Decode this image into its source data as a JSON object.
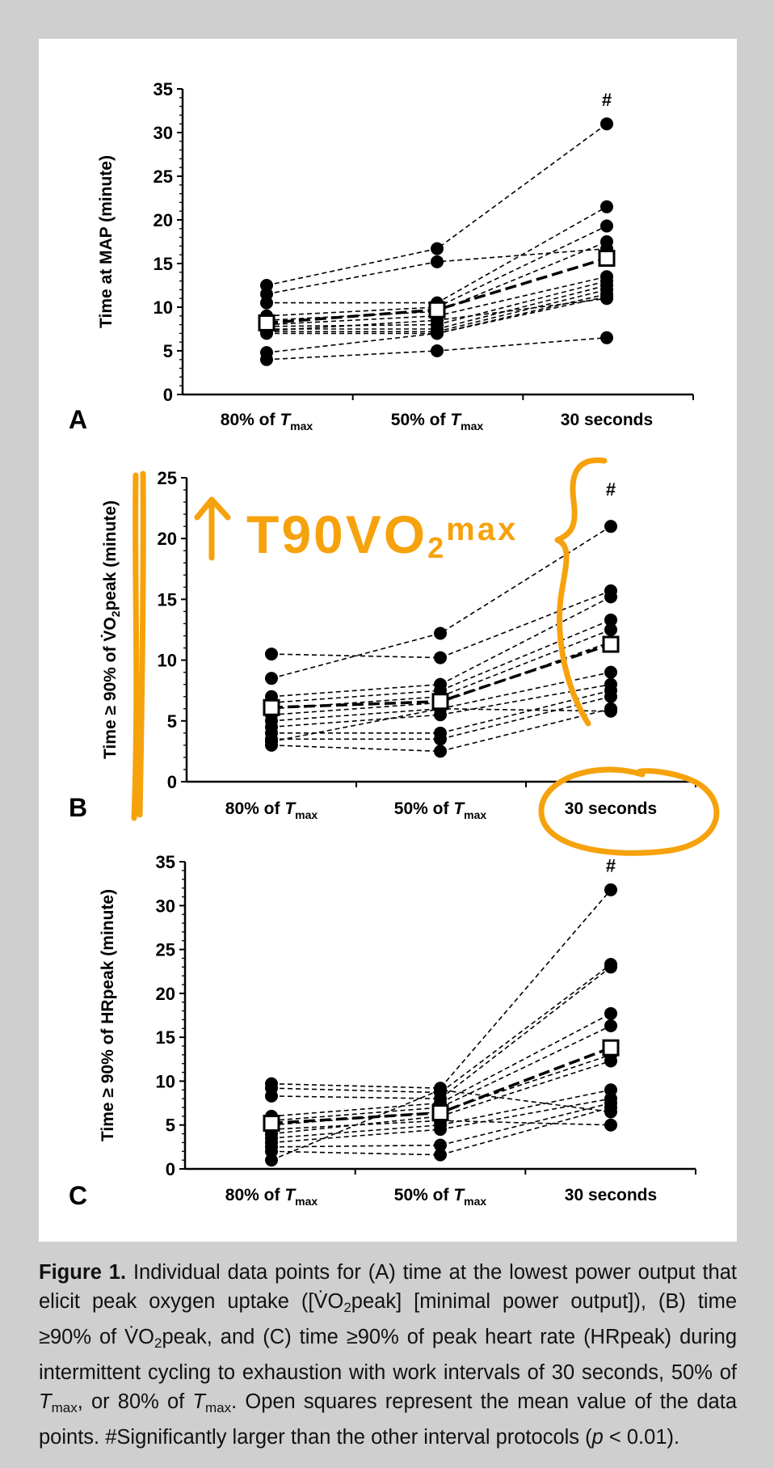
{
  "colors": {
    "background": "#cfcfcf",
    "panel": "#ffffff",
    "ink": "#000000",
    "annotation": "#f6a20c"
  },
  "chart_data": [
    {
      "type": "scatter",
      "panel_label": "A",
      "ylabel": "Time at MAP (minute)",
      "ylim": [
        0,
        35
      ],
      "yticks": [
        0,
        5,
        10,
        15,
        20,
        25,
        30,
        35
      ],
      "categories": [
        {
          "main": "80% of ",
          "italic": "T",
          "sub": "max"
        },
        {
          "main": "50% of ",
          "italic": "T",
          "sub": "max"
        },
        {
          "main": "30 seconds",
          "italic": "",
          "sub": ""
        }
      ],
      "subjects": [
        [
          12.5,
          16.7,
          31
        ],
        [
          11.5,
          15.2,
          16.7
        ],
        [
          10.5,
          10.5,
          21.5
        ],
        [
          9,
          10,
          19.3
        ],
        [
          8.5,
          9.5,
          17.5
        ],
        [
          8,
          9,
          13.5
        ],
        [
          7.8,
          8,
          13
        ],
        [
          7.5,
          7.5,
          12.5
        ],
        [
          7.2,
          7.2,
          12
        ],
        [
          7,
          7,
          11.5
        ],
        [
          7.3,
          8.5,
          11
        ],
        [
          4.8,
          7,
          11.2
        ],
        [
          4,
          5,
          6.5
        ]
      ],
      "mean": [
        8.2,
        9.7,
        15.6
      ],
      "significance": {
        "category_index": 2,
        "mark": "#"
      }
    },
    {
      "type": "scatter",
      "panel_label": "B",
      "ylabel": {
        "pre": "Time ≥ 90% of V̇O",
        "sub": "2",
        "post": "peak (minute)"
      },
      "ylim": [
        0,
        25
      ],
      "yticks": [
        0,
        5,
        10,
        15,
        20,
        25
      ],
      "categories": [
        {
          "main": "80% of ",
          "italic": "T",
          "sub": "max"
        },
        {
          "main": "50% of ",
          "italic": "T",
          "sub": "max"
        },
        {
          "main": "30 seconds",
          "italic": "",
          "sub": ""
        }
      ],
      "subjects": [
        [
          10.5,
          10.2,
          15.7
        ],
        [
          8.5,
          12.2,
          21
        ],
        [
          7,
          8,
          15.2
        ],
        [
          6.5,
          7.5,
          13.3
        ],
        [
          6,
          7,
          12.5
        ],
        [
          5.5,
          6.5,
          11.5
        ],
        [
          5,
          6,
          9
        ],
        [
          4.5,
          5.5,
          8
        ],
        [
          4,
          4,
          7.5
        ],
        [
          3.5,
          3.5,
          7
        ],
        [
          3,
          2.5,
          6
        ],
        [
          3.3,
          6,
          5.8
        ]
      ],
      "mean": [
        6.1,
        6.6,
        11.3
      ],
      "significance": {
        "category_index": 2,
        "mark": "#"
      }
    },
    {
      "type": "scatter",
      "panel_label": "C",
      "ylabel": "Time ≥ 90% of HRpeak (minute)",
      "ylim": [
        0,
        35
      ],
      "yticks": [
        0,
        5,
        10,
        15,
        20,
        25,
        30,
        35
      ],
      "categories": [
        {
          "main": "80% of ",
          "italic": "T",
          "sub": "max"
        },
        {
          "main": "50% of ",
          "italic": "T",
          "sub": "max"
        },
        {
          "main": "30 seconds",
          "italic": "",
          "sub": ""
        }
      ],
      "subjects": [
        [
          9.7,
          9.2,
          31.8
        ],
        [
          9.2,
          8.7,
          23.3
        ],
        [
          8.3,
          8,
          23
        ],
        [
          6,
          7.5,
          17.7
        ],
        [
          5.5,
          7,
          16.3
        ],
        [
          5,
          6.5,
          13
        ],
        [
          4,
          6,
          12.3
        ],
        [
          3.5,
          5,
          9
        ],
        [
          3,
          4.5,
          8
        ],
        [
          2.5,
          2.7,
          7.5
        ],
        [
          2,
          1.6,
          7
        ],
        [
          1,
          9,
          6.5
        ],
        [
          4.5,
          5.5,
          5
        ]
      ],
      "mean": [
        5.2,
        6.4,
        13.8
      ],
      "significance": {
        "category_index": 2,
        "mark": "#"
      }
    }
  ],
  "annotation": {
    "text": "T90VO",
    "sub": "2",
    "suffix": "max",
    "arrow": "↑"
  },
  "caption": {
    "label": "Figure 1.",
    "p1": " Individual data points for (A) time at the lowest power output that elicit peak oxygen uptake ([V̇O",
    "p1sub": "2",
    "p2": "peak] [minimal power output]), (B) time ≥90% of V̇O",
    "p2sub": "2",
    "p3": "peak, and (C) time ≥90% of peak heart rate (HRpeak) during intermittent cycling to exhaustion with work intervals of 30 seconds, 50% of ",
    "t1": "T",
    "t1sub": "max",
    "p4": ", or 80% of ",
    "t2": "T",
    "t2sub": "max",
    "p5": ". Open squares represent the mean value of the data points. #Significantly larger than the other interval protocols (",
    "pvar": "p",
    "p6": " < 0.01)."
  }
}
